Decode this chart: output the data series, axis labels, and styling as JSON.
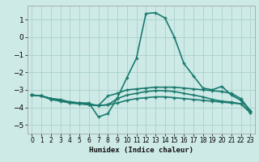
{
  "xlabel": "Humidex (Indice chaleur)",
  "background_color": "#ceeae7",
  "grid_color": "#add4d0",
  "line_color": "#1a7a6e",
  "x_values": [
    0,
    1,
    2,
    3,
    4,
    5,
    6,
    7,
    8,
    9,
    10,
    11,
    12,
    13,
    14,
    15,
    16,
    17,
    18,
    19,
    20,
    21,
    22,
    23
  ],
  "series": [
    [
      -3.3,
      -3.35,
      -3.5,
      -3.55,
      -3.7,
      -3.75,
      -3.75,
      -4.55,
      -4.35,
      -3.45,
      -2.3,
      -1.2,
      1.35,
      1.4,
      1.1,
      0.0,
      -1.5,
      -2.2,
      -2.9,
      -3.0,
      -2.8,
      -3.3,
      -3.6,
      -4.2
    ],
    [
      -3.3,
      -3.35,
      -3.5,
      -3.6,
      -3.7,
      -3.75,
      -3.8,
      -3.9,
      -3.35,
      -3.2,
      -3.0,
      -2.95,
      -2.9,
      -2.85,
      -2.85,
      -2.85,
      -2.9,
      -2.95,
      -3.0,
      -3.05,
      -3.1,
      -3.2,
      -3.5,
      -4.2
    ],
    [
      -3.3,
      -3.35,
      -3.55,
      -3.65,
      -3.75,
      -3.8,
      -3.85,
      -3.9,
      -3.85,
      -3.75,
      -3.6,
      -3.5,
      -3.45,
      -3.4,
      -3.4,
      -3.45,
      -3.5,
      -3.55,
      -3.6,
      -3.65,
      -3.7,
      -3.75,
      -3.8,
      -4.3
    ],
    [
      -3.3,
      -3.35,
      -3.5,
      -3.6,
      -3.7,
      -3.75,
      -3.85,
      -3.9,
      -3.85,
      -3.5,
      -3.3,
      -3.2,
      -3.1,
      -3.05,
      -3.05,
      -3.1,
      -3.2,
      -3.3,
      -3.4,
      -3.55,
      -3.65,
      -3.7,
      -3.8,
      -4.3
    ]
  ],
  "ylim": [
    -5.5,
    1.8
  ],
  "xlim": [
    -0.5,
    23.5
  ],
  "yticks": [
    -5,
    -4,
    -3,
    -2,
    -1,
    0,
    1
  ],
  "xticks": [
    0,
    1,
    2,
    3,
    4,
    5,
    6,
    7,
    8,
    9,
    10,
    11,
    12,
    13,
    14,
    15,
    16,
    17,
    18,
    19,
    20,
    21,
    22,
    23
  ]
}
